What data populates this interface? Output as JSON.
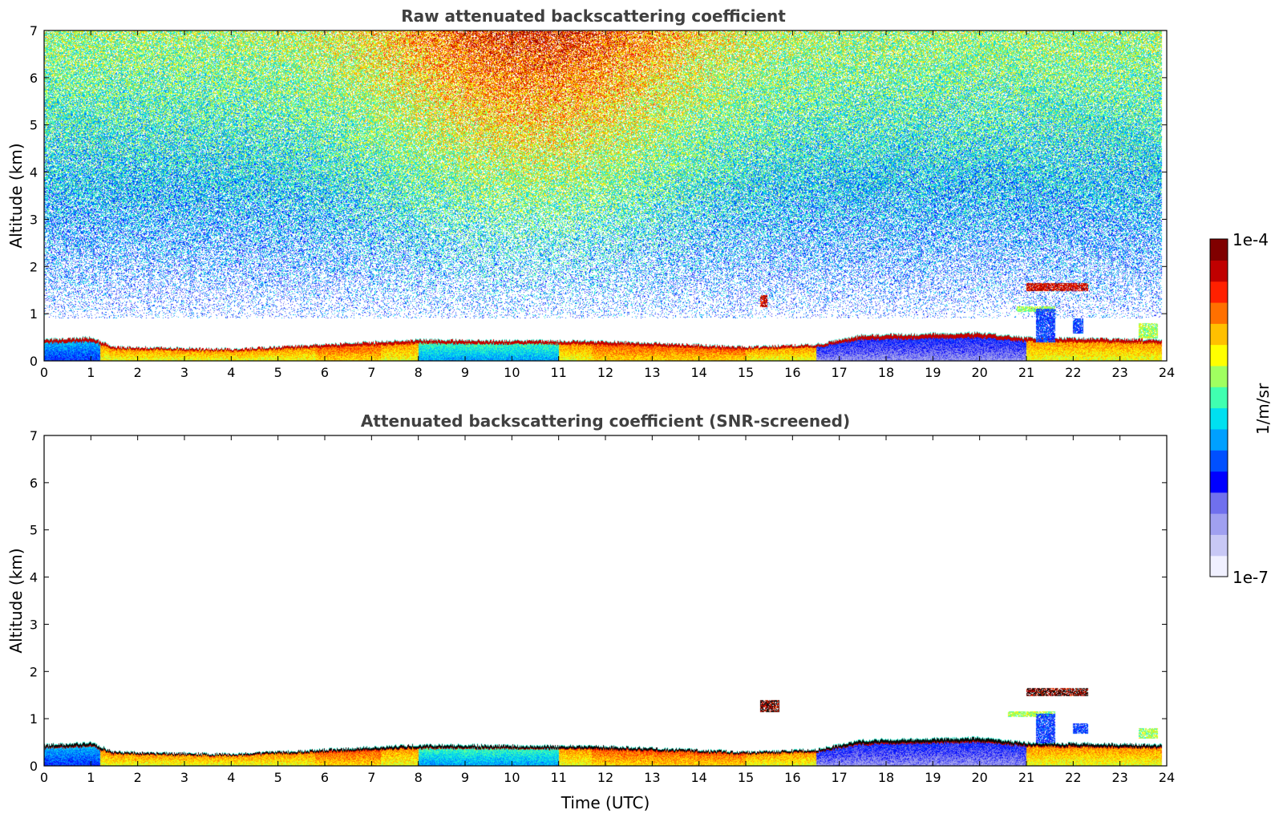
{
  "chart_data": [
    {
      "type": "heatmap",
      "title": "Raw attenuated backscattering coefficient",
      "xlabel": "",
      "ylabel": "Altitude (km)",
      "xlim": [
        0,
        24
      ],
      "ylim": [
        0,
        7
      ],
      "x_ticks": [
        "0",
        "1",
        "2",
        "3",
        "4",
        "5",
        "6",
        "7",
        "8",
        "9",
        "10",
        "11",
        "12",
        "13",
        "14",
        "15",
        "16",
        "17",
        "18",
        "19",
        "20",
        "21",
        "22",
        "23",
        "24"
      ],
      "y_ticks": [
        "0",
        "1",
        "2",
        "3",
        "4",
        "5",
        "6",
        "7"
      ],
      "mixing_layer_top_km": [
        [
          0,
          0.45
        ],
        [
          1,
          0.5
        ],
        [
          1.5,
          0.3
        ],
        [
          4,
          0.25
        ],
        [
          6,
          0.35
        ],
        [
          8,
          0.45
        ],
        [
          12,
          0.42
        ],
        [
          15,
          0.3
        ],
        [
          16.5,
          0.35
        ],
        [
          17.5,
          0.55
        ],
        [
          20,
          0.6
        ],
        [
          21,
          0.5
        ],
        [
          24,
          0.45
        ]
      ],
      "features": [
        {
          "x": [
            15.3,
            15.45
          ],
          "y": [
            1.15,
            1.4
          ],
          "level": "high"
        },
        {
          "x": [
            20.8,
            21.6
          ],
          "y": [
            1.05,
            1.15
          ],
          "level": "medium"
        },
        {
          "x": [
            21.0,
            22.3
          ],
          "y": [
            1.5,
            1.65
          ],
          "level": "high"
        },
        {
          "x": [
            21.2,
            21.6
          ],
          "y": [
            0.4,
            1.1
          ],
          "level": "low"
        },
        {
          "x": [
            22.0,
            22.2
          ],
          "y": [
            0.6,
            0.9
          ],
          "level": "low"
        },
        {
          "x": [
            23.4,
            23.8
          ],
          "y": [
            0.5,
            0.8
          ],
          "level": "medium"
        }
      ],
      "noise": "high above 1 km, maximum near 9-13 UTC at 5-7 km"
    },
    {
      "type": "heatmap",
      "title": "Attenuated backscattering coefficient (SNR-screened)",
      "xlabel": "Time (UTC)",
      "ylabel": "Altitude (km)",
      "xlim": [
        0,
        24
      ],
      "ylim": [
        0,
        7
      ],
      "x_ticks": [
        "0",
        "1",
        "2",
        "3",
        "4",
        "5",
        "6",
        "7",
        "8",
        "9",
        "10",
        "11",
        "12",
        "13",
        "14",
        "15",
        "16",
        "17",
        "18",
        "19",
        "20",
        "21",
        "22",
        "23",
        "24"
      ],
      "y_ticks": [
        "0",
        "1",
        "2",
        "3",
        "4",
        "5",
        "6",
        "7"
      ],
      "features": [
        {
          "x": [
            15.3,
            15.7
          ],
          "y": [
            1.15,
            1.4
          ],
          "level": "high"
        },
        {
          "x": [
            20.6,
            21.6
          ],
          "y": [
            1.05,
            1.15
          ],
          "level": "medium"
        },
        {
          "x": [
            21.0,
            22.3
          ],
          "y": [
            1.5,
            1.65
          ],
          "level": "high"
        },
        {
          "x": [
            21.2,
            21.6
          ],
          "y": [
            0.5,
            1.1
          ],
          "level": "low"
        },
        {
          "x": [
            22.0,
            22.3
          ],
          "y": [
            0.7,
            0.9
          ],
          "level": "low"
        },
        {
          "x": [
            23.4,
            23.8
          ],
          "y": [
            0.6,
            0.8
          ],
          "level": "medium"
        }
      ],
      "noise": "none (screened)"
    }
  ],
  "colorbar": {
    "label": "1/m/sr",
    "max_label": "1e-4",
    "min_label": "1e-7",
    "colormap": "jet",
    "colors": [
      "#f0f0ff",
      "#c8c8f5",
      "#a0a0f0",
      "#7070ee",
      "#0000ff",
      "#0050ff",
      "#00a0ff",
      "#00e0f0",
      "#40ffb0",
      "#a0ff60",
      "#ffff00",
      "#ffc000",
      "#ff7000",
      "#ff2000",
      "#c00000",
      "#800000"
    ]
  }
}
